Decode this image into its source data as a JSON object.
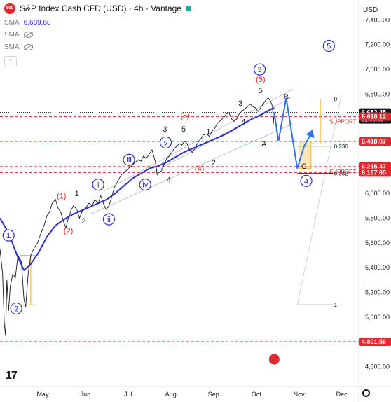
{
  "header": {
    "logo_text": "500",
    "title": "S&P Index Cash CFD (USD) · 4h · Vantage"
  },
  "indicators": [
    {
      "name": "SMA",
      "value": "6,689.68",
      "visible": true
    },
    {
      "name": "SMA",
      "value": "",
      "visible": false
    },
    {
      "name": "SMA",
      "value": "",
      "visible": false
    }
  ],
  "collapse_icon": "chevron-up-icon",
  "tv_logo_text": "17",
  "settings_icon": "gear-icon",
  "colors": {
    "price": "#131722",
    "sma": "#2a2ed6",
    "wave_blue": "#2a2ed6",
    "wave_red": "#e0282e",
    "forecast": "#2f6ff5",
    "support": "#e0282e",
    "box": "#f5b942"
  },
  "chart_data": {
    "type": "line",
    "currency_label": "USD",
    "y_ticks": [
      4600,
      4800,
      5000,
      5200,
      5400,
      5600,
      5800,
      6000,
      6200,
      6400,
      6600,
      6800,
      7000,
      7200,
      7400
    ],
    "y_tick_labels": [
      "4,600.00",
      "4,800.00",
      "5,000.00",
      "5,200.00",
      "5,400.00",
      "5,600.00",
      "5,800.00",
      "6,000.00",
      "6,200.00",
      "6,400.00",
      "6,600.00",
      "6,800.00",
      "7,000.00",
      "7,200.00",
      "7,400.00"
    ],
    "ylim": [
      4440,
      7560
    ],
    "x_labels": [
      {
        "label": "May",
        "t": 1.0
      },
      {
        "label": "Jun",
        "t": 2.0
      },
      {
        "label": "Jul",
        "t": 3.0
      },
      {
        "label": "Aug",
        "t": 4.0
      },
      {
        "label": "Sep",
        "t": 5.0
      },
      {
        "label": "Oct",
        "t": 6.0
      },
      {
        "label": "Nov",
        "t": 7.0
      },
      {
        "label": "Dec",
        "t": 8.0
      }
    ],
    "xlim": [
      0.0,
      8.4
    ],
    "price_series": [
      [
        0.0,
        5550
      ],
      [
        0.06,
        5350
      ],
      [
        0.1,
        4950
      ],
      [
        0.13,
        4850
      ],
      [
        0.16,
        5300
      ],
      [
        0.2,
        5050
      ],
      [
        0.24,
        5250
      ],
      [
        0.3,
        5350
      ],
      [
        0.36,
        5320
      ],
      [
        0.42,
        5500
      ],
      [
        0.5,
        5450
      ],
      [
        0.56,
        5150
      ],
      [
        0.6,
        5080
      ],
      [
        0.66,
        5350
      ],
      [
        0.72,
        5500
      ],
      [
        0.8,
        5560
      ],
      [
        0.88,
        5600
      ],
      [
        0.96,
        5680
      ],
      [
        1.04,
        5750
      ],
      [
        1.1,
        5820
      ],
      [
        1.16,
        5850
      ],
      [
        1.22,
        5920
      ],
      [
        1.3,
        5950
      ],
      [
        1.36,
        5880
      ],
      [
        1.42,
        5850
      ],
      [
        1.48,
        5780
      ],
      [
        1.54,
        5720
      ],
      [
        1.6,
        5800
      ],
      [
        1.66,
        5860
      ],
      [
        1.72,
        5900
      ],
      [
        1.8,
        5870
      ],
      [
        1.86,
        5800
      ],
      [
        1.92,
        5850
      ],
      [
        2.0,
        5880
      ],
      [
        2.08,
        5920
      ],
      [
        2.16,
        5900
      ],
      [
        2.22,
        5950
      ],
      [
        2.3,
        5920
      ],
      [
        2.36,
        5980
      ],
      [
        2.42,
        5920
      ],
      [
        2.48,
        5870
      ],
      [
        2.54,
        5890
      ],
      [
        2.6,
        5950
      ],
      [
        2.68,
        6050
      ],
      [
        2.76,
        6100
      ],
      [
        2.84,
        6150
      ],
      [
        2.92,
        6170
      ],
      [
        3.0,
        6200
      ],
      [
        3.08,
        6220
      ],
      [
        3.16,
        6250
      ],
      [
        3.24,
        6270
      ],
      [
        3.3,
        6260
      ],
      [
        3.36,
        6300
      ],
      [
        3.42,
        6280
      ],
      [
        3.5,
        6320
      ],
      [
        3.56,
        6350
      ],
      [
        3.6,
        6300
      ],
      [
        3.64,
        6250
      ],
      [
        3.68,
        6150
      ],
      [
        3.72,
        6170
      ],
      [
        3.78,
        6180
      ],
      [
        3.84,
        6230
      ],
      [
        3.9,
        6280
      ],
      [
        3.96,
        6300
      ],
      [
        4.02,
        6330
      ],
      [
        4.08,
        6360
      ],
      [
        4.14,
        6380
      ],
      [
        4.2,
        6400
      ],
      [
        4.26,
        6390
      ],
      [
        4.32,
        6420
      ],
      [
        4.38,
        6400
      ],
      [
        4.44,
        6350
      ],
      [
        4.5,
        6330
      ],
      [
        4.56,
        6360
      ],
      [
        4.62,
        6400
      ],
      [
        4.7,
        6440
      ],
      [
        4.76,
        6470
      ],
      [
        4.84,
        6480
      ],
      [
        4.9,
        6460
      ],
      [
        4.96,
        6500
      ],
      [
        5.02,
        6520
      ],
      [
        5.08,
        6560
      ],
      [
        5.14,
        6580
      ],
      [
        5.2,
        6600
      ],
      [
        5.26,
        6620
      ],
      [
        5.3,
        6640
      ],
      [
        5.36,
        6650
      ],
      [
        5.42,
        6600
      ],
      [
        5.48,
        6580
      ],
      [
        5.54,
        6600
      ],
      [
        5.6,
        6640
      ],
      [
        5.66,
        6660
      ],
      [
        5.72,
        6680
      ],
      [
        5.8,
        6700
      ],
      [
        5.86,
        6720
      ],
      [
        5.92,
        6700
      ],
      [
        5.98,
        6690
      ],
      [
        6.04,
        6660
      ],
      [
        6.1,
        6690
      ],
      [
        6.16,
        6720
      ],
      [
        6.22,
        6750
      ],
      [
        6.28,
        6770
      ],
      [
        6.34,
        6740
      ],
      [
        6.38,
        6700
      ],
      [
        6.4,
        6560
      ],
      [
        6.42,
        6652
      ]
    ],
    "sma_series": [
      [
        0.0,
        5800
      ],
      [
        0.2,
        5680
      ],
      [
        0.4,
        5500
      ],
      [
        0.56,
        5380
      ],
      [
        0.7,
        5420
      ],
      [
        0.9,
        5520
      ],
      [
        1.1,
        5650
      ],
      [
        1.3,
        5740
      ],
      [
        1.5,
        5790
      ],
      [
        1.7,
        5830
      ],
      [
        1.9,
        5860
      ],
      [
        2.1,
        5890
      ],
      [
        2.3,
        5920
      ],
      [
        2.5,
        5950
      ],
      [
        2.7,
        6000
      ],
      [
        2.9,
        6060
      ],
      [
        3.1,
        6120
      ],
      [
        3.3,
        6160
      ],
      [
        3.5,
        6200
      ],
      [
        3.7,
        6220
      ],
      [
        3.9,
        6250
      ],
      [
        4.1,
        6290
      ],
      [
        4.3,
        6330
      ],
      [
        4.5,
        6360
      ],
      [
        4.7,
        6390
      ],
      [
        4.9,
        6420
      ],
      [
        5.1,
        6450
      ],
      [
        5.3,
        6480
      ],
      [
        5.5,
        6520
      ],
      [
        5.7,
        6560
      ],
      [
        5.9,
        6600
      ],
      [
        6.1,
        6630
      ],
      [
        6.3,
        6670
      ],
      [
        6.42,
        6690
      ]
    ],
    "forecast_path": [
      [
        6.42,
        6652
      ],
      [
        6.52,
        6420
      ],
      [
        6.7,
        6770
      ],
      [
        6.96,
        6200
      ],
      [
        7.12,
        6380
      ],
      [
        7.28,
        6480
      ]
    ],
    "channel": [
      {
        "from": [
          2.45,
          6020
        ],
        "to": [
          6.85,
          6840
        ]
      },
      {
        "from": [
          2.1,
          5830
        ],
        "to": [
          6.85,
          6560
        ]
      },
      {
        "from": [
          3.55,
          6160
        ],
        "to": [
          6.85,
          6780
        ]
      }
    ],
    "support_lines": [
      {
        "y": 6618.12,
        "label": "SUPPORT"
      },
      {
        "y": 6418.07,
        "label": ""
      },
      {
        "y": 6215.47,
        "label": "SUPPORT"
      },
      {
        "y": 6167.65,
        "label": ""
      },
      {
        "y": 4801.58,
        "label": ""
      }
    ],
    "horizontal_lines": [
      {
        "y": 6652.45,
        "style": "dotted",
        "color": "#131722"
      }
    ],
    "fib_lines": [
      {
        "y": 6760,
        "label": "0"
      },
      {
        "y": 6380,
        "label": "0.236"
      },
      {
        "y": 6160,
        "label": "0.382"
      },
      {
        "y": 5100,
        "label": "1"
      }
    ],
    "price_labels": [
      {
        "y": 6652.45,
        "text": "6,652.45",
        "sub": "02:33:38",
        "bg": "#131722"
      },
      {
        "y": 6618.12,
        "text": "6,618.12",
        "sub": "",
        "bg": "#e0282e"
      },
      {
        "y": 6418.07,
        "text": "6,418.07",
        "sub": "",
        "bg": "#e0282e"
      },
      {
        "y": 6215.47,
        "text": "6,215.47",
        "sub": "",
        "bg": "#e0282e"
      },
      {
        "y": 6167.65,
        "text": "6,167.65",
        "sub": "",
        "bg": "#e0282e"
      },
      {
        "y": 4801.58,
        "text": "4,801.58",
        "sub": "",
        "bg": "#e0282e"
      }
    ],
    "wave_labels": [
      {
        "text": "1",
        "t": 0.2,
        "y": 5660,
        "style": "blue-circle"
      },
      {
        "text": "2",
        "t": 0.38,
        "y": 5070,
        "style": "blue-circle"
      },
      {
        "text": "(1)",
        "t": 1.44,
        "y": 5980,
        "style": "red"
      },
      {
        "text": "1",
        "t": 1.8,
        "y": 6000,
        "style": "black"
      },
      {
        "text": "(2)",
        "t": 1.6,
        "y": 5700,
        "style": "red"
      },
      {
        "text": "2",
        "t": 1.96,
        "y": 5780,
        "style": "black"
      },
      {
        "text": "i",
        "t": 2.3,
        "y": 6070,
        "style": "blue-circle"
      },
      {
        "text": "ii",
        "t": 2.55,
        "y": 5790,
        "style": "blue-circle"
      },
      {
        "text": "iii",
        "t": 3.02,
        "y": 6270,
        "style": "blue-circle"
      },
      {
        "text": "iv",
        "t": 3.4,
        "y": 6070,
        "style": "blue-circle"
      },
      {
        "text": "v",
        "t": 3.88,
        "y": 6410,
        "style": "blue-circle"
      },
      {
        "text": "3",
        "t": 3.86,
        "y": 6520,
        "style": "black"
      },
      {
        "text": "4",
        "t": 3.95,
        "y": 6110,
        "style": "black"
      },
      {
        "text": "(3)",
        "t": 4.33,
        "y": 6630,
        "style": "red"
      },
      {
        "text": "5",
        "t": 4.3,
        "y": 6520,
        "style": "black"
      },
      {
        "text": "1",
        "t": 4.88,
        "y": 6500,
        "style": "black"
      },
      {
        "text": "2",
        "t": 5.0,
        "y": 6250,
        "style": "black"
      },
      {
        "text": "(4)",
        "t": 4.67,
        "y": 6200,
        "style": "red"
      },
      {
        "text": "3",
        "t": 5.63,
        "y": 6730,
        "style": "black"
      },
      {
        "text": "4",
        "t": 5.7,
        "y": 6580,
        "style": "black"
      },
      {
        "text": "5",
        "t": 6.1,
        "y": 6830,
        "style": "black"
      },
      {
        "text": "(5)",
        "t": 6.1,
        "y": 6920,
        "style": "red"
      },
      {
        "text": "3",
        "t": 6.08,
        "y": 7000,
        "style": "blue-circle"
      },
      {
        "text": "A",
        "t": 6.18,
        "y": 6400,
        "style": "black"
      },
      {
        "text": "B",
        "t": 6.7,
        "y": 6780,
        "style": "black"
      },
      {
        "text": "C",
        "t": 7.12,
        "y": 6220,
        "style": "black"
      },
      {
        "text": "4",
        "t": 7.17,
        "y": 6100,
        "style": "blue-circle"
      },
      {
        "text": "5",
        "t": 7.7,
        "y": 7190,
        "style": "blue-circle"
      }
    ],
    "projection_boxes": [
      {
        "t1": 7.0,
        "t2": 7.28,
        "y1": 6200,
        "y2": 6420,
        "label": ""
      }
    ],
    "projection_lines": [
      {
        "from": [
          0.72,
          5500
        ],
        "to": [
          0.72,
          5100
        ]
      },
      {
        "from": [
          7.5,
          6760
        ],
        "to": [
          7.5,
          6400
        ]
      }
    ]
  }
}
